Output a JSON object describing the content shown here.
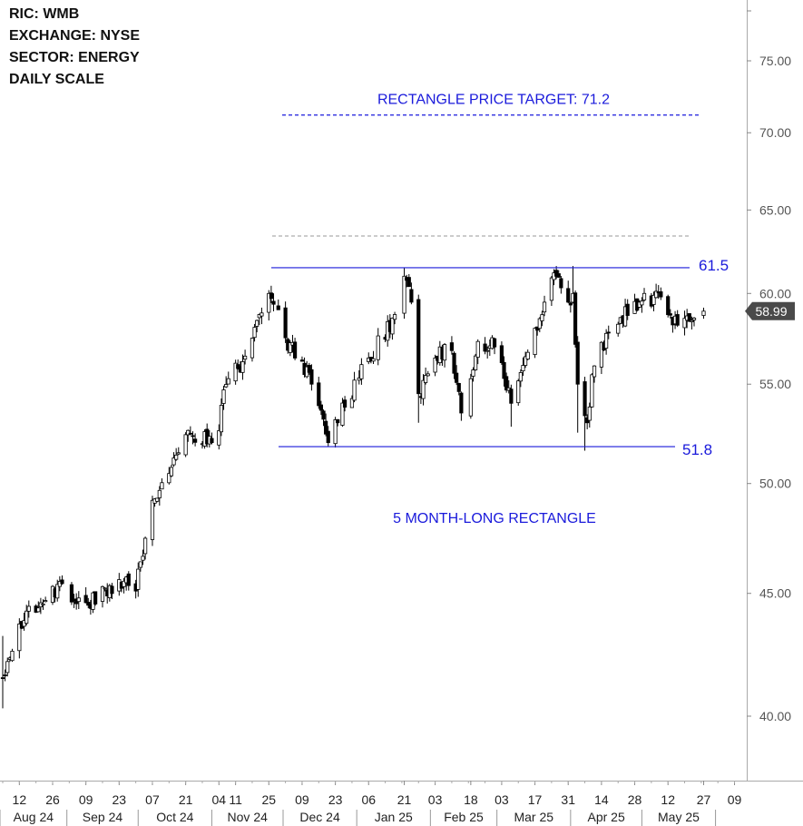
{
  "info": {
    "ric": "RIC:  WMB",
    "exchange": "EXCHANGE: NYSE",
    "sector": "SECTOR:  ENERGY",
    "scale": "DAILY SCALE"
  },
  "colors": {
    "annotation": "#1a1adb",
    "candle": "#000000",
    "axis_text": "#555555",
    "grid_line": "#888888",
    "price_badge_bg": "#4a4a4a"
  },
  "chart_data": {
    "type": "candlestick",
    "title": "",
    "xlabel": "",
    "ylabel": "",
    "scale": "log",
    "ylim": [
      37.4,
      81.0
    ],
    "y_ticks": [
      {
        "value": 40,
        "label": "40.00"
      },
      {
        "value": 45,
        "label": "45.00"
      },
      {
        "value": 50,
        "label": "50.00"
      },
      {
        "value": 55,
        "label": "55.00"
      },
      {
        "value": 60,
        "label": "60.00"
      },
      {
        "value": 65,
        "label": "65.00"
      },
      {
        "value": 70,
        "label": "70.00"
      },
      {
        "value": 75,
        "label": "75.00"
      }
    ],
    "x_day_labels": [
      "12",
      "26",
      "09",
      "23",
      "07",
      "21",
      "04",
      "11",
      "25",
      "09",
      "23",
      "06",
      "21",
      "03",
      "18",
      "03",
      "17",
      "31",
      "14",
      "28",
      "12",
      "27",
      "09"
    ],
    "x_month_labels": [
      "Aug 24",
      "Sep 24",
      "Oct 24",
      "Nov 24",
      "Dec 24",
      "Jan 25",
      "Feb 25",
      "Mar 25",
      "Apr 25",
      "May 25"
    ],
    "last_price": {
      "value": 58.99,
      "label": "58.99"
    },
    "anchors": [
      {
        "date": "2024-08-05",
        "close": 41.5,
        "low": 40.3,
        "high": 43.2
      },
      {
        "date": "2024-08-12",
        "close": 43.7
      },
      {
        "date": "2024-08-26",
        "close": 45.3
      },
      {
        "date": "2024-09-09",
        "close": 44.6
      },
      {
        "date": "2024-09-23",
        "close": 45.6
      },
      {
        "date": "2024-09-30",
        "close": 45.1
      },
      {
        "date": "2024-10-07",
        "close": 49.2
      },
      {
        "date": "2024-10-21",
        "close": 52.4
      },
      {
        "date": "2024-11-01",
        "close": 52.0
      },
      {
        "date": "2024-11-04",
        "close": 52.6
      },
      {
        "date": "2024-11-06",
        "close": 54.7
      },
      {
        "date": "2024-11-15",
        "close": 56.5
      },
      {
        "date": "2024-11-25",
        "close": 60.0
      },
      {
        "date": "2024-12-02",
        "close": 57.5
      },
      {
        "date": "2024-12-13",
        "close": 55.0
      },
      {
        "date": "2024-12-20",
        "close": 52.0
      },
      {
        "date": "2024-12-27",
        "close": 53.8
      },
      {
        "date": "2025-01-06",
        "close": 56.4
      },
      {
        "date": "2025-01-17",
        "close": 58.8
      },
      {
        "date": "2025-01-21",
        "close": 61.0
      },
      {
        "date": "2025-01-24",
        "close": 59.5
      },
      {
        "date": "2025-01-27",
        "close": 54.5
      },
      {
        "date": "2025-02-03",
        "close": 56.4
      },
      {
        "date": "2025-02-10",
        "close": 56.8
      },
      {
        "date": "2025-02-14",
        "close": 53.5
      },
      {
        "date": "2025-02-21",
        "close": 57.3
      },
      {
        "date": "2025-02-28",
        "close": 57.0
      },
      {
        "date": "2025-03-07",
        "close": 54.0
      },
      {
        "date": "2025-03-12",
        "close": 56.0
      },
      {
        "date": "2025-03-21",
        "close": 59.5
      },
      {
        "date": "2025-03-26",
        "close": 61.0
      },
      {
        "date": "2025-03-31",
        "close": 59.5
      },
      {
        "date": "2025-04-02",
        "close": 60.0
      },
      {
        "date": "2025-04-04",
        "close": 55.0
      },
      {
        "date": "2025-04-08",
        "close": 53.0
      },
      {
        "date": "2025-04-10",
        "close": 55.5
      },
      {
        "date": "2025-04-17",
        "close": 57.8
      },
      {
        "date": "2025-04-30",
        "close": 59.5
      },
      {
        "date": "2025-05-09",
        "close": 59.8
      },
      {
        "date": "2025-05-16",
        "close": 58.2
      },
      {
        "date": "2025-05-23",
        "close": 58.6
      },
      {
        "date": "2025-05-27",
        "close": 58.99
      }
    ],
    "annotations": {
      "target_label": "RECTANGLE PRICE TARGET: 71.2",
      "target_value": 71.2,
      "upper_value": 61.5,
      "upper_label": "61.5",
      "lower_value": 51.8,
      "lower_label": "51.8",
      "gray_dashed_value": 63.4,
      "pattern_label": "5 MONTH-LONG RECTANGLE"
    }
  }
}
